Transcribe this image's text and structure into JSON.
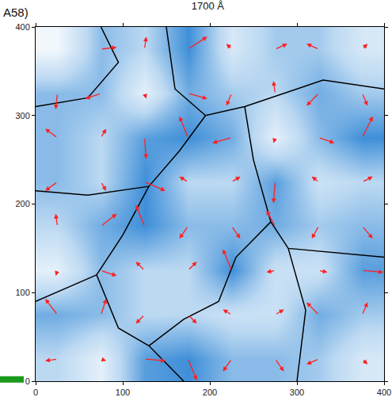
{
  "chart_data": {
    "type": "vector_field",
    "title": "1700 Å",
    "annotations": [
      "A58)"
    ],
    "xlim": [
      0,
      400
    ],
    "ylim": [
      0,
      400
    ],
    "xticks": [
      0,
      100,
      200,
      300,
      400
    ],
    "yticks": [
      0,
      100,
      200,
      300,
      400
    ],
    "color": "#ff2020",
    "x": [
      25,
      75,
      125,
      175,
      225,
      275,
      325,
      375
    ],
    "y": [
      25,
      75,
      125,
      175,
      225,
      275,
      325,
      375
    ],
    "u": [
      [
        -0.7,
        0.3,
        1.2,
        0.5,
        -0.5,
        0.5,
        -0.7,
        0.3
      ],
      [
        -0.7,
        0.3,
        -0.5,
        0.5,
        -0.5,
        0.5,
        -0.7,
        0.3
      ],
      [
        -0.1,
        0.9,
        -0.5,
        0.5,
        -0.5,
        -0.5,
        0.5,
        1.2
      ],
      [
        -0.1,
        0.9,
        -0.5,
        -0.5,
        0.5,
        -0.5,
        -0.4,
        0.6
      ],
      [
        -0.7,
        0.3,
        1.2,
        -0.5,
        0.5,
        -0.1,
        -0.4,
        0.6
      ],
      [
        -0.7,
        0.3,
        0.1,
        -0.5,
        -1.1,
        -0.1,
        0.9,
        0.6
      ],
      [
        -0.1,
        -0.9,
        0.1,
        1.1,
        -0.3,
        -0.1,
        -0.7,
        0.3
      ],
      [
        -0.1,
        0.9,
        0.1,
        1.1,
        -0.3,
        0.7,
        -0.7,
        0.3
      ]
    ],
    "v": [
      [
        -0.1,
        -0.1,
        -0.1,
        -1.2,
        -0.7,
        -0.7,
        -0.3,
        -0.3
      ],
      [
        0.9,
        0.9,
        -0.5,
        -0.5,
        0.3,
        0.3,
        0.7,
        0.7
      ],
      [
        -0.3,
        -0.3,
        0.5,
        0.5,
        1.2,
        -0.1,
        -0.1,
        -0.1
      ],
      [
        0.7,
        0.7,
        1.2,
        -0.7,
        -0.7,
        0.9,
        -0.7,
        -0.7
      ],
      [
        -0.5,
        -0.5,
        -0.5,
        0.3,
        0.3,
        -1.2,
        0.3,
        0.3
      ],
      [
        0.5,
        0.5,
        -1.2,
        1.2,
        -0.3,
        -0.3,
        -0.3,
        1.2
      ],
      [
        -0.9,
        -0.3,
        -0.3,
        -0.3,
        -0.7,
        0.7,
        -0.7,
        -0.7
      ],
      [
        0.1,
        0.1,
        0.7,
        0.7,
        0.3,
        0.3,
        0.3,
        0.3
      ]
    ],
    "z": [
      [
        0.5,
        0.2,
        0.9,
        1.0,
        0.7,
        0.7,
        0.6,
        0.3
      ],
      [
        0.8,
        0.7,
        0.5,
        0.5,
        0.4,
        0.4,
        0.8,
        0.6
      ],
      [
        0.2,
        0.7,
        0.5,
        0.5,
        1.0,
        0.4,
        0.4,
        0.9
      ],
      [
        0.5,
        0.8,
        1.0,
        0.7,
        0.7,
        0.8,
        0.6,
        0.7
      ],
      [
        0.7,
        0.5,
        1.0,
        0.5,
        0.5,
        0.9,
        0.4,
        0.5
      ],
      [
        0.7,
        0.5,
        0.9,
        1.0,
        0.8,
        0.2,
        0.7,
        1.0
      ],
      [
        0.7,
        0.7,
        0.2,
        0.8,
        0.6,
        0.5,
        0.8,
        0.6
      ],
      [
        0.1,
        0.7,
        0.5,
        1.0,
        0.3,
        0.6,
        0.6,
        0.3
      ]
    ],
    "zlim": [
      0,
      1
    ],
    "boundaries": [
      [
        [
          75,
          400
        ],
        [
          95,
          360
        ],
        [
          60,
          320
        ],
        [
          0,
          310
        ]
      ],
      [
        [
          150,
          400
        ],
        [
          160,
          330
        ],
        [
          195,
          300
        ],
        [
          240,
          310
        ],
        [
          300,
          330
        ],
        [
          330,
          340
        ],
        [
          400,
          330
        ]
      ],
      [
        [
          0,
          215
        ],
        [
          60,
          210
        ],
        [
          130,
          220
        ],
        [
          165,
          260
        ],
        [
          195,
          300
        ]
      ],
      [
        [
          130,
          220
        ],
        [
          100,
          165
        ],
        [
          70,
          120
        ],
        [
          95,
          60
        ],
        [
          130,
          40
        ],
        [
          170,
          0
        ]
      ],
      [
        [
          240,
          310
        ],
        [
          250,
          250
        ],
        [
          270,
          180
        ],
        [
          290,
          150
        ],
        [
          400,
          140
        ]
      ],
      [
        [
          270,
          180
        ],
        [
          230,
          140
        ],
        [
          210,
          90
        ],
        [
          170,
          70
        ],
        [
          130,
          40
        ]
      ],
      [
        [
          290,
          150
        ],
        [
          310,
          80
        ],
        [
          300,
          0
        ]
      ],
      [
        [
          0,
          90
        ],
        [
          70,
          120
        ]
      ]
    ]
  }
}
